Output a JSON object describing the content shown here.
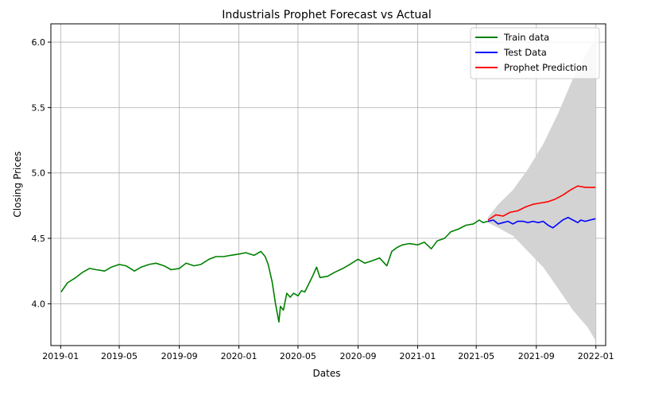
{
  "chart_data": {
    "type": "line",
    "title": "Industrials Prophet Forecast vs Actual",
    "xlabel": "Dates",
    "ylabel": "Closing Prices",
    "ylim": [
      3.68,
      6.14
    ],
    "xlim": [
      "2018-12-12",
      "2022-01-21"
    ],
    "x_ticks": [
      "2019-01",
      "2019-05",
      "2019-09",
      "2020-01",
      "2020-05",
      "2020-09",
      "2021-01",
      "2021-05",
      "2021-09",
      "2022-01"
    ],
    "y_ticks": [
      "4.0",
      "4.5",
      "5.0",
      "5.5",
      "6.0"
    ],
    "grid": true,
    "legend_position": "top-right",
    "series": [
      {
        "name": "Train data",
        "color": "#008000",
        "points": [
          [
            "2019-01-02",
            4.09
          ],
          [
            "2019-01-15",
            4.16
          ],
          [
            "2019-02-01",
            4.2
          ],
          [
            "2019-02-15",
            4.24
          ],
          [
            "2019-03-01",
            4.27
          ],
          [
            "2019-03-15",
            4.26
          ],
          [
            "2019-04-01",
            4.25
          ],
          [
            "2019-04-15",
            4.28
          ],
          [
            "2019-05-01",
            4.3
          ],
          [
            "2019-05-15",
            4.29
          ],
          [
            "2019-06-01",
            4.25
          ],
          [
            "2019-06-15",
            4.28
          ],
          [
            "2019-07-01",
            4.3
          ],
          [
            "2019-07-15",
            4.31
          ],
          [
            "2019-08-01",
            4.29
          ],
          [
            "2019-08-15",
            4.26
          ],
          [
            "2019-09-01",
            4.27
          ],
          [
            "2019-09-15",
            4.31
          ],
          [
            "2019-10-01",
            4.29
          ],
          [
            "2019-10-15",
            4.3
          ],
          [
            "2019-11-01",
            4.34
          ],
          [
            "2019-11-15",
            4.36
          ],
          [
            "2019-12-01",
            4.36
          ],
          [
            "2019-12-15",
            4.37
          ],
          [
            "2020-01-01",
            4.38
          ],
          [
            "2020-01-15",
            4.39
          ],
          [
            "2020-02-01",
            4.37
          ],
          [
            "2020-02-15",
            4.4
          ],
          [
            "2020-02-24",
            4.36
          ],
          [
            "2020-03-01",
            4.3
          ],
          [
            "2020-03-09",
            4.17
          ],
          [
            "2020-03-16",
            4.0
          ],
          [
            "2020-03-23",
            3.86
          ],
          [
            "2020-03-26",
            3.98
          ],
          [
            "2020-04-01",
            3.95
          ],
          [
            "2020-04-08",
            4.08
          ],
          [
            "2020-04-15",
            4.05
          ],
          [
            "2020-04-22",
            4.08
          ],
          [
            "2020-05-01",
            4.06
          ],
          [
            "2020-05-08",
            4.1
          ],
          [
            "2020-05-15",
            4.09
          ],
          [
            "2020-06-01",
            4.22
          ],
          [
            "2020-06-08",
            4.28
          ],
          [
            "2020-06-15",
            4.2
          ],
          [
            "2020-07-01",
            4.21
          ],
          [
            "2020-07-15",
            4.24
          ],
          [
            "2020-08-01",
            4.27
          ],
          [
            "2020-08-15",
            4.3
          ],
          [
            "2020-09-01",
            4.34
          ],
          [
            "2020-09-15",
            4.31
          ],
          [
            "2020-10-01",
            4.33
          ],
          [
            "2020-10-15",
            4.35
          ],
          [
            "2020-10-30",
            4.29
          ],
          [
            "2020-11-09",
            4.4
          ],
          [
            "2020-11-20",
            4.43
          ],
          [
            "2020-12-01",
            4.45
          ],
          [
            "2020-12-15",
            4.46
          ],
          [
            "2021-01-01",
            4.45
          ],
          [
            "2021-01-15",
            4.47
          ],
          [
            "2021-01-29",
            4.42
          ],
          [
            "2021-02-10",
            4.48
          ],
          [
            "2021-02-25",
            4.5
          ],
          [
            "2021-03-10",
            4.55
          ],
          [
            "2021-03-25",
            4.57
          ],
          [
            "2021-04-10",
            4.6
          ],
          [
            "2021-04-25",
            4.61
          ],
          [
            "2021-05-07",
            4.64
          ],
          [
            "2021-05-15",
            4.62
          ],
          [
            "2021-05-25",
            4.63
          ]
        ]
      },
      {
        "name": "Test Data",
        "color": "#0000ff",
        "points": [
          [
            "2021-05-25",
            4.63
          ],
          [
            "2021-06-05",
            4.64
          ],
          [
            "2021-06-15",
            4.61
          ],
          [
            "2021-06-25",
            4.62
          ],
          [
            "2021-07-05",
            4.63
          ],
          [
            "2021-07-15",
            4.61
          ],
          [
            "2021-07-25",
            4.63
          ],
          [
            "2021-08-05",
            4.63
          ],
          [
            "2021-08-15",
            4.62
          ],
          [
            "2021-08-25",
            4.63
          ],
          [
            "2021-09-05",
            4.62
          ],
          [
            "2021-09-15",
            4.63
          ],
          [
            "2021-09-25",
            4.6
          ],
          [
            "2021-10-05",
            4.58
          ],
          [
            "2021-10-15",
            4.61
          ],
          [
            "2021-10-25",
            4.64
          ],
          [
            "2021-11-05",
            4.66
          ],
          [
            "2021-11-15",
            4.64
          ],
          [
            "2021-11-25",
            4.62
          ],
          [
            "2021-12-01",
            4.64
          ],
          [
            "2021-12-10",
            4.63
          ],
          [
            "2021-12-20",
            4.64
          ],
          [
            "2021-12-31",
            4.65
          ]
        ]
      },
      {
        "name": "Prophet Prediction",
        "color": "#ff0000",
        "points": [
          [
            "2021-05-25",
            4.64
          ],
          [
            "2021-06-10",
            4.68
          ],
          [
            "2021-06-25",
            4.67
          ],
          [
            "2021-07-10",
            4.7
          ],
          [
            "2021-07-25",
            4.71
          ],
          [
            "2021-08-10",
            4.74
          ],
          [
            "2021-08-25",
            4.76
          ],
          [
            "2021-09-10",
            4.77
          ],
          [
            "2021-09-25",
            4.78
          ],
          [
            "2021-10-10",
            4.8
          ],
          [
            "2021-10-25",
            4.83
          ],
          [
            "2021-11-10",
            4.87
          ],
          [
            "2021-11-25",
            4.9
          ],
          [
            "2021-12-10",
            4.89
          ],
          [
            "2021-12-31",
            4.89
          ]
        ]
      }
    ],
    "confidence_band": {
      "color": "#d3d3d3",
      "points": [
        [
          "2021-05-25",
          4.62,
          4.66
        ],
        [
          "2021-06-15",
          4.58,
          4.76
        ],
        [
          "2021-07-15",
          4.52,
          4.87
        ],
        [
          "2021-08-15",
          4.4,
          5.03
        ],
        [
          "2021-09-15",
          4.28,
          5.22
        ],
        [
          "2021-10-15",
          4.12,
          5.45
        ],
        [
          "2021-11-15",
          3.95,
          5.72
        ],
        [
          "2021-12-15",
          3.82,
          5.93
        ],
        [
          "2021-12-31",
          3.72,
          6.03
        ]
      ]
    }
  }
}
